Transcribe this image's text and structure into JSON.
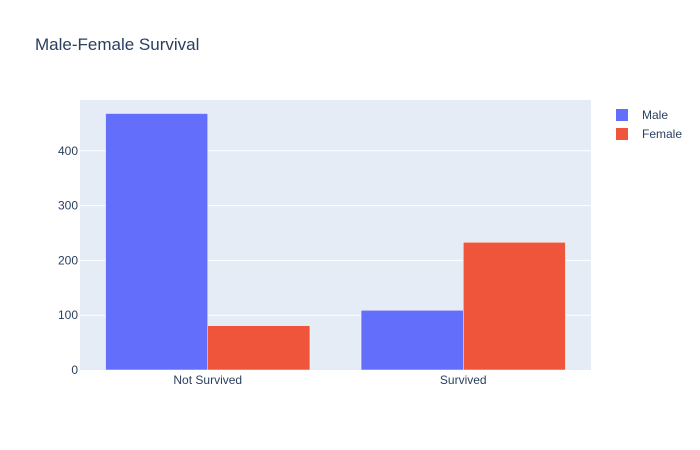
{
  "chart_data": {
    "type": "bar",
    "title": "Male-Female Survival",
    "categories": [
      "Not Survived",
      "Survived"
    ],
    "series": [
      {
        "name": "Male",
        "values": [
          468,
          109
        ],
        "color": "#636efa"
      },
      {
        "name": "Female",
        "values": [
          81,
          233
        ],
        "color": "#ef553b"
      }
    ],
    "xlabel": "",
    "ylabel": "",
    "ylim": [
      0,
      492.6
    ],
    "yticks": [
      0,
      100,
      200,
      300,
      400
    ],
    "grid": true,
    "legend_position": "top-right",
    "barmode": "group",
    "plot_background": "#e5ecf6"
  }
}
